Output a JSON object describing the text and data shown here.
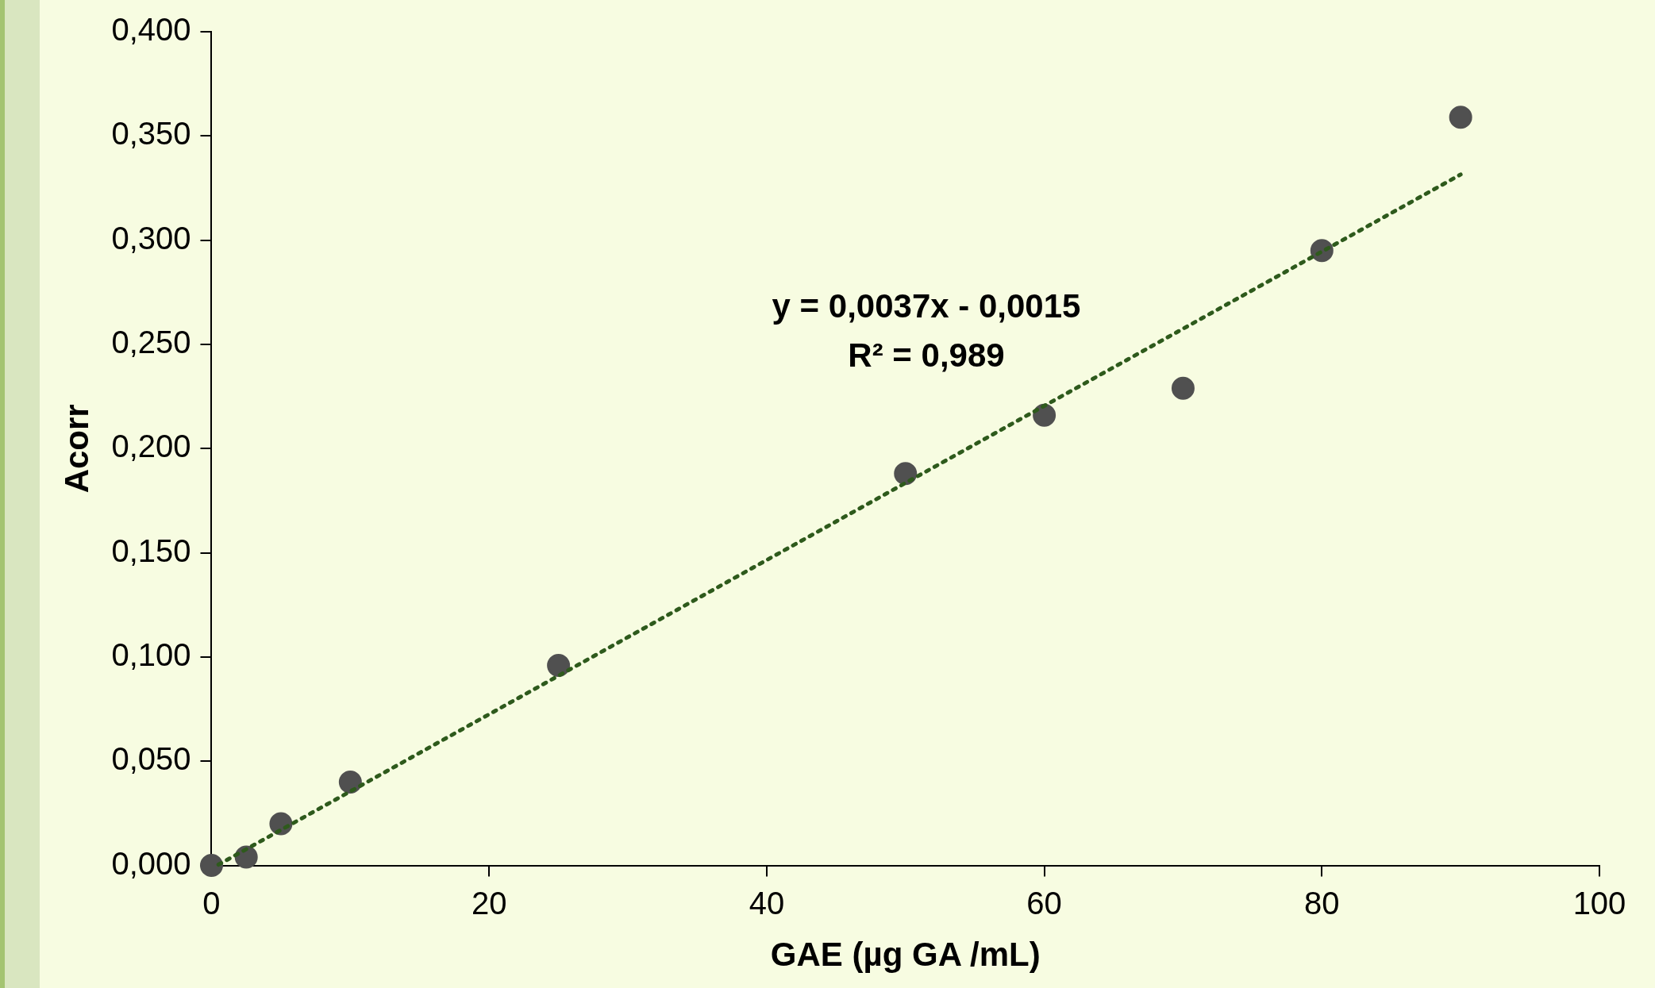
{
  "chart_data": {
    "type": "scatter",
    "xlabel": "GAE (µg GA /mL)",
    "ylabel": "Acorr",
    "x": [
      0,
      2.5,
      5,
      10,
      25,
      50,
      60,
      70,
      80,
      90
    ],
    "series": [
      {
        "color": "#505050",
        "marker": "circle",
        "values": [
          0,
          0.004,
          0.02,
          0.04,
          0.096,
          0.188,
          0.216,
          0.229,
          0.295,
          0.359
        ]
      },
      {
        "type": "line",
        "color": "#2e5a1c",
        "line_style": "dotted",
        "x": [
          0.5,
          90
        ],
        "values": [
          0.0004,
          0.3315
        ]
      }
    ],
    "xlim": [
      0,
      100
    ],
    "xticks": [
      0,
      20,
      40,
      60,
      80,
      100
    ],
    "ylim": [
      0,
      0.4
    ],
    "yticks": [
      {
        "value": 0,
        "label": "0,000"
      },
      {
        "value": 0.05,
        "label": "0,050"
      },
      {
        "value": 0.1,
        "label": "0,100"
      },
      {
        "value": 0.15,
        "label": "0,150"
      },
      {
        "value": 0.2,
        "label": "0,200"
      },
      {
        "value": 0.25,
        "label": "0,250"
      },
      {
        "value": 0.3,
        "label": "0,300"
      },
      {
        "value": 0.35,
        "label": "0,350"
      },
      {
        "value": 0.4,
        "label": "0,400"
      }
    ],
    "grid": false,
    "legend": false,
    "annotations": [
      "y = 0,0037x - 0,0015",
      "R² = 0,989"
    ]
  }
}
